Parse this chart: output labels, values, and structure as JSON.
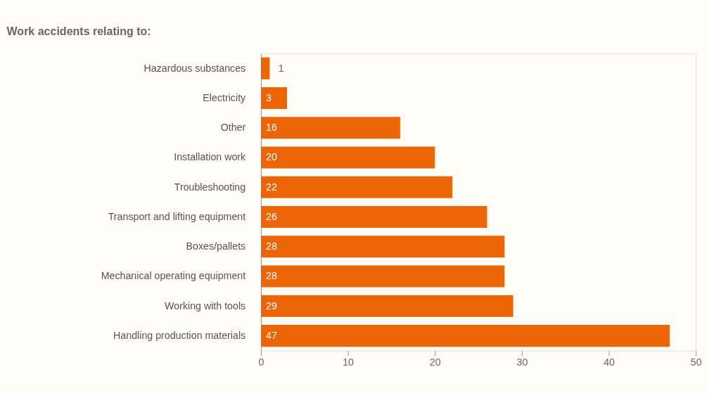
{
  "chart_data": {
    "type": "bar",
    "orientation": "horizontal",
    "title": "Work accidents relating to:",
    "categories": [
      "Hazardous substances",
      "Electricity",
      "Other",
      "Installation work",
      "Troubleshooting",
      "Transport and lifting equipment",
      "Boxes/pallets",
      "Mechanical operating equipment",
      "Working with tools",
      "Handling production materials"
    ],
    "values": [
      1,
      3,
      16,
      20,
      22,
      26,
      28,
      28,
      29,
      47
    ],
    "color": "#ec6608",
    "xlim": [
      0,
      50
    ],
    "xticks": [
      0,
      10,
      20,
      30,
      40,
      50
    ],
    "grid": false,
    "data_labels": true
  }
}
